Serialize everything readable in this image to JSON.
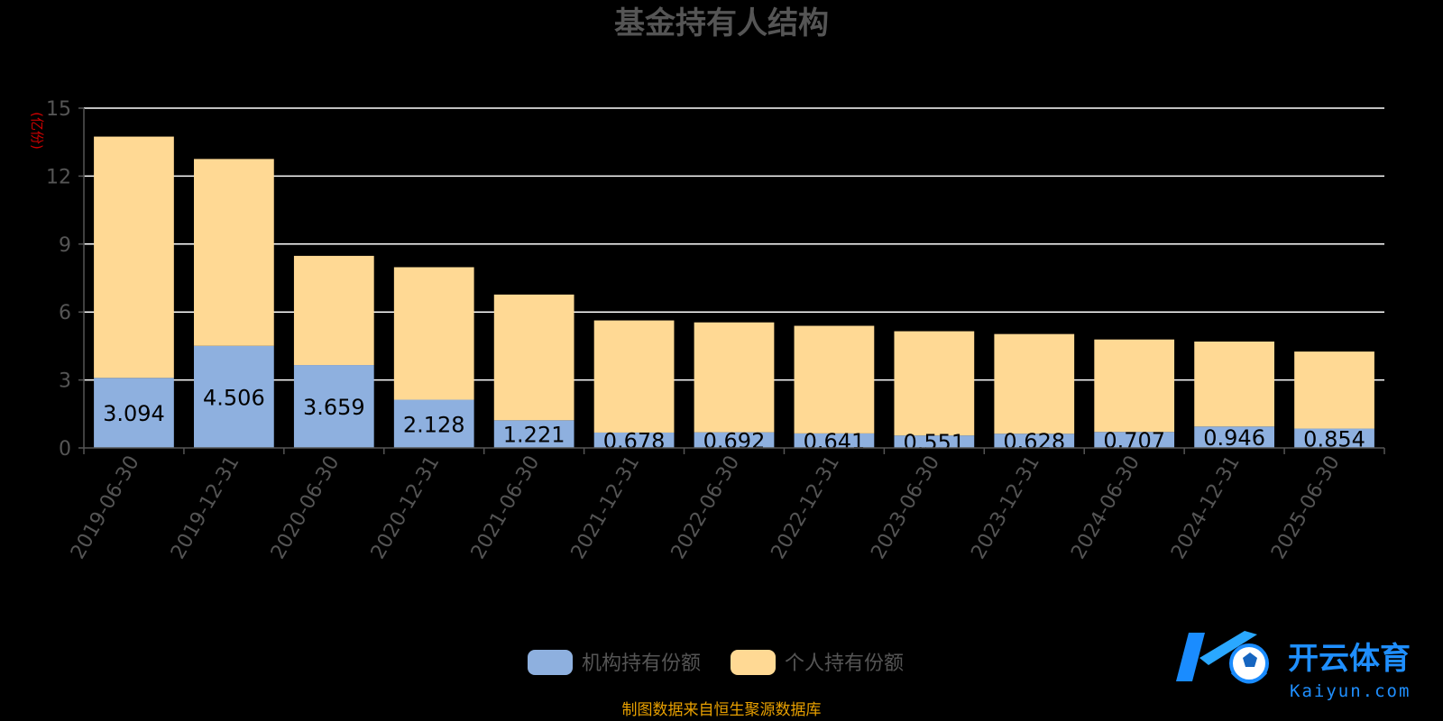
{
  "chart_data": {
    "type": "bar",
    "stacked": true,
    "title": "基金持有人结构",
    "ylabel": "(亿份)",
    "xlabel": "",
    "ylim": [
      0,
      15
    ],
    "yticks": [
      "0",
      "3",
      "6",
      "9",
      "12",
      "15"
    ],
    "grid": true,
    "legend_position": "bottom",
    "categories": [
      "2019-06-30",
      "2019-12-31",
      "2020-06-30",
      "2020-12-31",
      "2021-06-30",
      "2021-12-31",
      "2022-06-30",
      "2022-12-31",
      "2023-06-30",
      "2023-12-31",
      "2024-06-30",
      "2024-12-31",
      "2025-06-30"
    ],
    "series": [
      {
        "name": "机构持有份额",
        "color": "#8eb0df",
        "values": [
          3.094,
          4.506,
          3.659,
          2.128,
          1.221,
          0.678,
          0.692,
          0.641,
          0.551,
          0.628,
          0.707,
          0.946,
          0.854
        ],
        "labels": [
          "3.094",
          "4.506",
          "3.659",
          "2.128",
          "1.221",
          "0.678",
          "0.692",
          "0.641",
          "0.551",
          "0.628",
          "0.707",
          "0.946",
          "0.854"
        ]
      },
      {
        "name": "个人持有份额",
        "color": "#ffd994",
        "values": [
          10.65,
          8.25,
          4.82,
          5.85,
          5.55,
          4.95,
          4.85,
          4.75,
          4.6,
          4.4,
          4.08,
          3.75,
          3.4
        ]
      }
    ],
    "source_note": "制图数据来自恒生聚源数据库"
  },
  "watermark": {
    "brand_text": "开云体育",
    "brand_url": "Kaiyun.com"
  },
  "colors": {
    "background": "#000000",
    "grid": "#ffffff",
    "axis_text": "#555555",
    "title": "#555555",
    "ylabel": "#cc0000",
    "source_note": "#e8a000"
  }
}
